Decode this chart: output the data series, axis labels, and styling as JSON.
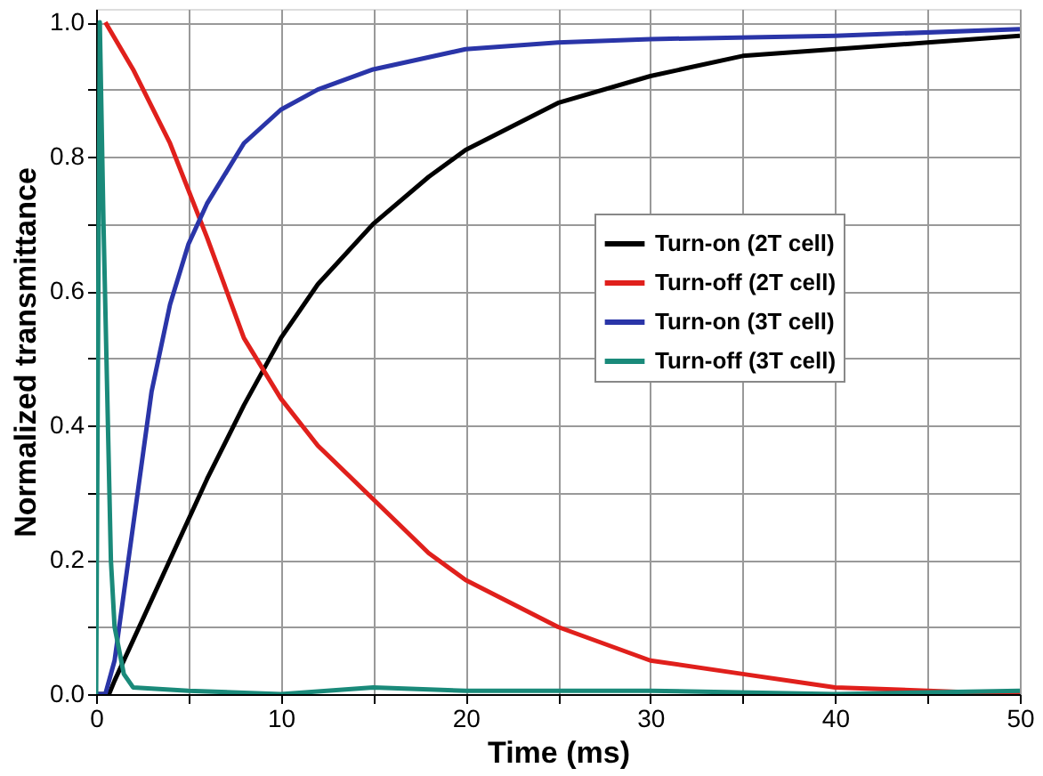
{
  "chart_data": {
    "type": "line",
    "xlabel": "Time (ms)",
    "ylabel": "Normalized transmittance",
    "xlim": [
      0,
      50
    ],
    "ylim": [
      0,
      1.02
    ],
    "xticks": [
      0,
      {
        "value": 5,
        "label": null
      },
      10,
      {
        "value": 15,
        "label": null
      },
      20,
      {
        "value": 25,
        "label": null
      },
      30,
      {
        "value": 35,
        "label": null
      },
      40,
      {
        "value": 45,
        "label": null
      },
      50
    ],
    "yticks": [
      {
        "value": 0,
        "label": "0.0"
      },
      {
        "value": 0.1,
        "label": null
      },
      {
        "value": 0.2,
        "label": "0.2"
      },
      {
        "value": 0.3,
        "label": null
      },
      {
        "value": 0.4,
        "label": "0.4"
      },
      {
        "value": 0.5,
        "label": null
      },
      {
        "value": 0.6,
        "label": "0.6"
      },
      {
        "value": 0.7,
        "label": null
      },
      {
        "value": 0.8,
        "label": "0.8"
      },
      {
        "value": 0.9,
        "label": null
      },
      {
        "value": 1.0,
        "label": "1.0"
      }
    ],
    "grid": true,
    "legend": "right",
    "line_style": "solid",
    "marker": "none",
    "series": [
      {
        "name": "Turn-on (2T cell)",
        "color": "#000000",
        "x": [
          0,
          0.7,
          1,
          2,
          4,
          6,
          8,
          10,
          12,
          15,
          18,
          20,
          25,
          30,
          35,
          40,
          45,
          50
        ],
        "values": [
          0,
          0,
          0.02,
          0.08,
          0.2,
          0.32,
          0.43,
          0.53,
          0.61,
          0.7,
          0.77,
          0.81,
          0.88,
          0.92,
          0.95,
          0.96,
          0.97,
          0.98
        ]
      },
      {
        "name": "Turn-off (2T cell)",
        "color": "#e0201c",
        "x": [
          0.5,
          2,
          4,
          6,
          8,
          10,
          12,
          15,
          18,
          20,
          25,
          30,
          35,
          40,
          45,
          50
        ],
        "values": [
          1.0,
          0.93,
          0.82,
          0.68,
          0.53,
          0.44,
          0.37,
          0.29,
          0.21,
          0.17,
          0.1,
          0.05,
          0.03,
          0.01,
          0.005,
          0
        ]
      },
      {
        "name": "Turn-on (3T cell)",
        "color": "#2a35a8",
        "x": [
          0,
          0.5,
          1,
          2,
          3,
          4,
          5,
          6,
          8,
          10,
          12,
          15,
          20,
          25,
          30,
          40,
          50
        ],
        "values": [
          0,
          0,
          0.05,
          0.25,
          0.45,
          0.58,
          0.67,
          0.73,
          0.82,
          0.87,
          0.9,
          0.93,
          0.96,
          0.97,
          0.975,
          0.98,
          0.99
        ]
      },
      {
        "name": "Turn-off (3T cell)",
        "color": "#1a8a7a",
        "x": [
          0,
          0.2,
          0.4,
          0.6,
          0.8,
          1.0,
          1.5,
          2,
          5,
          10,
          15,
          20,
          30,
          40,
          50
        ],
        "values": [
          0,
          1.0,
          0.7,
          0.45,
          0.2,
          0.1,
          0.03,
          0.01,
          0.005,
          0,
          0.01,
          0.005,
          0.005,
          0,
          0.005
        ]
      }
    ]
  }
}
